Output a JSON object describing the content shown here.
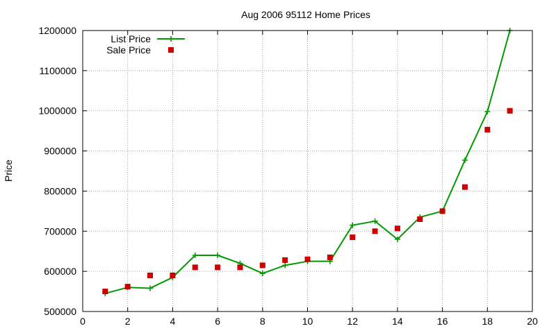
{
  "chart_data": {
    "type": "line",
    "title": "Aug 2006 95112 Home Prices",
    "xlabel": "",
    "ylabel": "Price",
    "xlim": [
      0,
      20
    ],
    "ylim": [
      500000,
      1200000
    ],
    "xticks": [
      0,
      2,
      4,
      6,
      8,
      10,
      12,
      14,
      16,
      18,
      20
    ],
    "yticks": [
      500000,
      600000,
      700000,
      800000,
      900000,
      1000000,
      1100000,
      1200000
    ],
    "grid": true,
    "legend_position": "top-left",
    "series": [
      {
        "name": "List Price",
        "style": "line-with-plus-markers",
        "color": "#009900",
        "x": [
          1,
          2,
          3,
          4,
          5,
          6,
          7,
          8,
          9,
          10,
          11,
          12,
          13,
          14,
          15,
          16,
          17,
          18,
          19
        ],
        "values": [
          545000,
          560000,
          558000,
          585000,
          640000,
          640000,
          620000,
          595000,
          615000,
          625000,
          625000,
          715000,
          725000,
          680000,
          735000,
          750000,
          877000,
          998000,
          1200000
        ]
      },
      {
        "name": "Sale Price",
        "style": "square-markers",
        "color": "#cc0000",
        "x": [
          1,
          2,
          3,
          4,
          5,
          6,
          7,
          8,
          9,
          10,
          11,
          12,
          13,
          14,
          15,
          16,
          17,
          18,
          19
        ],
        "values": [
          550000,
          562000,
          590000,
          590000,
          610000,
          610000,
          610000,
          615000,
          628000,
          630000,
          635000,
          685000,
          700000,
          707000,
          730000,
          750000,
          810000,
          953000,
          1000000
        ]
      }
    ]
  }
}
